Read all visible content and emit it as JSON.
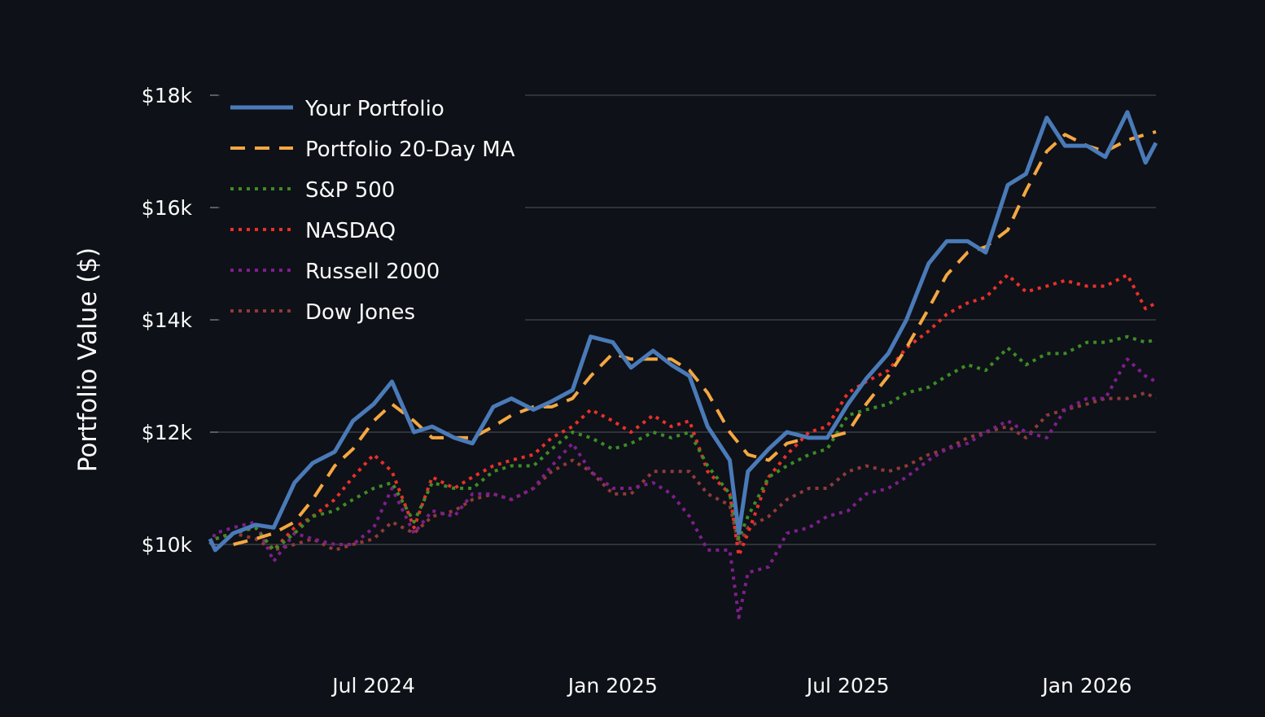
{
  "chart_data": {
    "type": "line",
    "title": "",
    "xlabel": "",
    "ylabel": "Portfolio Value ($)",
    "xlim": [
      "2024-02-26",
      "2026-02-23"
    ],
    "ylim": [
      8400,
      18200
    ],
    "grid": true,
    "legend_placement": "top-left",
    "x_ticks": [
      {
        "date": "2024-07-01",
        "label": "Jul 2024"
      },
      {
        "date": "2025-01-01",
        "label": "Jan 2025"
      },
      {
        "date": "2025-07-01",
        "label": "Jul 2025"
      },
      {
        "date": "2026-01-01",
        "label": "Jan 2026"
      }
    ],
    "y_ticks": [
      {
        "value": 10000,
        "label": "$10k"
      },
      {
        "value": 12000,
        "label": "$12k"
      },
      {
        "value": 14000,
        "label": "$14k"
      },
      {
        "value": 16000,
        "label": "$16k"
      },
      {
        "value": 18000,
        "label": "$18k"
      }
    ],
    "x": [
      "2024-02-26",
      "2024-03-01",
      "2024-03-15",
      "2024-04-01",
      "2024-04-15",
      "2024-05-01",
      "2024-05-15",
      "2024-06-01",
      "2024-06-15",
      "2024-07-01",
      "2024-07-15",
      "2024-08-01",
      "2024-08-15",
      "2024-09-01",
      "2024-09-15",
      "2024-10-01",
      "2024-10-15",
      "2024-11-01",
      "2024-11-15",
      "2024-12-01",
      "2024-12-15",
      "2025-01-01",
      "2025-01-15",
      "2025-02-01",
      "2025-02-15",
      "2025-03-01",
      "2025-03-15",
      "2025-04-01",
      "2025-04-08",
      "2025-04-15",
      "2025-05-01",
      "2025-05-15",
      "2025-06-01",
      "2025-06-15",
      "2025-07-01",
      "2025-07-15",
      "2025-08-01",
      "2025-08-15",
      "2025-09-01",
      "2025-09-15",
      "2025-10-01",
      "2025-10-15",
      "2025-11-01",
      "2025-11-15",
      "2025-12-01",
      "2025-12-15",
      "2026-01-01",
      "2026-01-15",
      "2026-02-01",
      "2026-02-15",
      "2026-02-23"
    ],
    "series": [
      {
        "name": "Your Portfolio",
        "color": "#4a7ab8",
        "style": "solid",
        "values": [
          10100,
          9900,
          10200,
          10350,
          10300,
          11100,
          11450,
          11650,
          12200,
          12500,
          12900,
          12000,
          12100,
          11900,
          11800,
          12450,
          12600,
          12400,
          12550,
          12750,
          13700,
          13600,
          13150,
          13450,
          13200,
          13000,
          12100,
          11500,
          10200,
          11300,
          11700,
          12000,
          11900,
          11900,
          12500,
          12950,
          13400,
          14000,
          15000,
          15400,
          15400,
          15200,
          16400,
          16600,
          17600,
          17100,
          17100,
          16900,
          17700,
          16800,
          17150
        ]
      },
      {
        "name": "Portfolio 20-Day MA",
        "color": "#f5a742",
        "style": "dashed",
        "values": [
          null,
          null,
          10000,
          10100,
          10200,
          10400,
          10800,
          11400,
          11700,
          12200,
          12500,
          12200,
          11900,
          11900,
          11900,
          12100,
          12300,
          12450,
          12450,
          12600,
          13000,
          13400,
          13300,
          13300,
          13300,
          13100,
          12700,
          12000,
          11800,
          11600,
          11500,
          11800,
          11900,
          11900,
          12000,
          12500,
          13000,
          13500,
          14200,
          14800,
          15200,
          15300,
          15600,
          16300,
          17000,
          17300,
          17100,
          17000,
          17200,
          17300,
          17350
        ]
      },
      {
        "name": "S&P 500",
        "color": "#3d8c26",
        "style": "dotted",
        "values": [
          10000,
          10100,
          10200,
          10300,
          9900,
          10200,
          10500,
          10600,
          10800,
          11000,
          11100,
          10400,
          11100,
          11000,
          11000,
          11300,
          11400,
          11400,
          11700,
          12000,
          11900,
          11700,
          11800,
          12000,
          11900,
          12000,
          11400,
          10900,
          10100,
          10500,
          11200,
          11400,
          11600,
          11700,
          12300,
          12400,
          12500,
          12700,
          12800,
          13000,
          13200,
          13100,
          13500,
          13200,
          13400,
          13400,
          13600,
          13600,
          13700,
          13600,
          13650
        ]
      },
      {
        "name": "NASDAQ",
        "color": "#e8302a",
        "style": "dotted",
        "values": [
          10000,
          10100,
          10200,
          10300,
          9900,
          10300,
          10500,
          10800,
          11200,
          11600,
          11300,
          10300,
          11200,
          11000,
          11200,
          11400,
          11500,
          11600,
          11900,
          12100,
          12400,
          12200,
          12000,
          12300,
          12100,
          12200,
          11300,
          10900,
          9800,
          10200,
          11200,
          11600,
          12000,
          12100,
          12700,
          12900,
          13100,
          13500,
          13800,
          14100,
          14300,
          14400,
          14800,
          14500,
          14600,
          14700,
          14600,
          14600,
          14800,
          14200,
          14300
        ]
      },
      {
        "name": "Russell 2000",
        "color": "#7d1f8c",
        "style": "dotted",
        "values": [
          10000,
          10200,
          10300,
          10400,
          9700,
          10200,
          10100,
          10000,
          10000,
          10300,
          11000,
          10200,
          10600,
          10500,
          10900,
          10900,
          10800,
          11000,
          11400,
          11800,
          11300,
          11000,
          11000,
          11100,
          10900,
          10500,
          9900,
          9900,
          8700,
          9500,
          9600,
          10200,
          10300,
          10500,
          10600,
          10900,
          11000,
          11200,
          11500,
          11700,
          11800,
          12000,
          12200,
          12000,
          11900,
          12400,
          12600,
          12600,
          13300,
          13000,
          12900
        ]
      },
      {
        "name": "Dow Jones",
        "color": "#8f3a3a",
        "style": "dotted",
        "values": [
          10000,
          10100,
          10200,
          10100,
          9900,
          10000,
          10100,
          9900,
          10000,
          10100,
          10400,
          10200,
          10500,
          10600,
          10800,
          10900,
          10800,
          11000,
          11300,
          11500,
          11300,
          10900,
          10900,
          11300,
          11300,
          11300,
          10900,
          10700,
          10000,
          10300,
          10500,
          10800,
          11000,
          11000,
          11300,
          11400,
          11300,
          11400,
          11600,
          11700,
          11900,
          12000,
          12100,
          11900,
          12300,
          12400,
          12500,
          12600,
          12600,
          12700,
          12600
        ]
      }
    ]
  }
}
